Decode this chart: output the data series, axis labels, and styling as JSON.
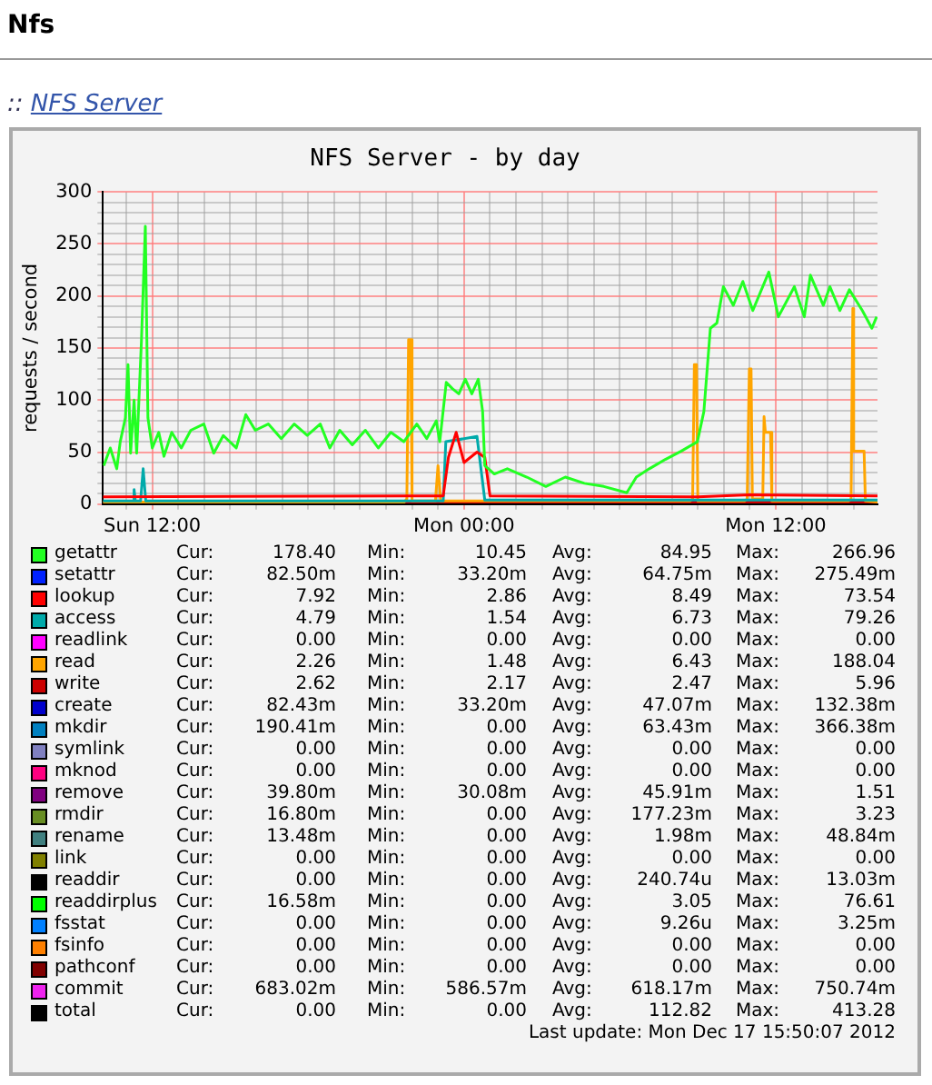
{
  "chart_data": {
    "type": "line",
    "title": "NFS Server - by day",
    "ylabel": "requests / second",
    "xlim": [
      "2012-12-16T10:06",
      "2012-12-17T15:55"
    ],
    "ylim": [
      0,
      300
    ],
    "xticks": [
      {
        "value": "2012-12-16T11:00",
        "label": null
      },
      {
        "value": "2012-12-16T12:00",
        "label": "Sun 12:00"
      },
      {
        "value": "2012-12-16T13:00",
        "label": null
      },
      {
        "value": "2012-12-16T14:00",
        "label": null
      },
      {
        "value": "2012-12-16T15:00",
        "label": null
      },
      {
        "value": "2012-12-16T16:00",
        "label": null
      },
      {
        "value": "2012-12-16T17:00",
        "label": null
      },
      {
        "value": "2012-12-16T18:00",
        "label": null
      },
      {
        "value": "2012-12-16T19:00",
        "label": null
      },
      {
        "value": "2012-12-16T20:00",
        "label": null
      },
      {
        "value": "2012-12-16T21:00",
        "label": null
      },
      {
        "value": "2012-12-16T22:00",
        "label": null
      },
      {
        "value": "2012-12-16T23:00",
        "label": null
      },
      {
        "value": "2012-12-17T00:00",
        "label": "Mon 00:00"
      },
      {
        "value": "2012-12-17T01:00",
        "label": null
      },
      {
        "value": "2012-12-17T02:00",
        "label": null
      },
      {
        "value": "2012-12-17T03:00",
        "label": null
      },
      {
        "value": "2012-12-17T04:00",
        "label": null
      },
      {
        "value": "2012-12-17T05:00",
        "label": null
      },
      {
        "value": "2012-12-17T06:00",
        "label": null
      },
      {
        "value": "2012-12-17T07:00",
        "label": null
      },
      {
        "value": "2012-12-17T08:00",
        "label": null
      },
      {
        "value": "2012-12-17T09:00",
        "label": null
      },
      {
        "value": "2012-12-17T10:00",
        "label": null
      },
      {
        "value": "2012-12-17T11:00",
        "label": null
      },
      {
        "value": "2012-12-17T12:00",
        "label": "Mon 12:00"
      },
      {
        "value": "2012-12-17T13:00",
        "label": null
      },
      {
        "value": "2012-12-17T14:00",
        "label": null
      },
      {
        "value": "2012-12-17T15:00",
        "label": null
      }
    ],
    "yticks": [
      0,
      {
        "value": 10,
        "label": null
      },
      {
        "value": 20,
        "label": null
      },
      {
        "value": 30,
        "label": null
      },
      {
        "value": 40,
        "label": null
      },
      50,
      {
        "value": 60,
        "label": null
      },
      {
        "value": 70,
        "label": null
      },
      {
        "value": 80,
        "label": null
      },
      {
        "value": 90,
        "label": null
      },
      100,
      {
        "value": 110,
        "label": null
      },
      {
        "value": 120,
        "label": null
      },
      {
        "value": 130,
        "label": null
      },
      {
        "value": 140,
        "label": null
      },
      150,
      {
        "value": 160,
        "label": null
      },
      {
        "value": 170,
        "label": null
      },
      {
        "value": 180,
        "label": null
      },
      {
        "value": 190,
        "label": null
      },
      200,
      {
        "value": 210,
        "label": null
      },
      {
        "value": 220,
        "label": null
      },
      {
        "value": 230,
        "label": null
      },
      {
        "value": 240,
        "label": null
      },
      250,
      {
        "value": 260,
        "label": null
      },
      {
        "value": 270,
        "label": null
      },
      {
        "value": 280,
        "label": null
      },
      {
        "value": 290,
        "label": null
      },
      300
    ],
    "grid": true,
    "legend": "bottom",
    "series": [
      {
        "name": "getattr",
        "color": "#22ff22",
        "x": [
          "2012-12-16T10:08",
          "2012-12-16T10:23",
          "2012-12-16T10:38",
          "2012-12-16T10:46",
          "2012-12-16T10:58",
          "2012-12-16T11:04",
          "2012-12-16T11:10",
          "2012-12-16T11:18",
          "2012-12-16T11:24",
          "2012-12-16T11:35",
          "2012-12-16T11:44",
          "2012-12-16T11:50",
          "2012-12-16T12:00",
          "2012-12-16T12:15",
          "2012-12-16T12:27",
          "2012-12-16T12:45",
          "2012-12-16T13:07",
          "2012-12-16T13:29",
          "2012-12-16T13:59",
          "2012-12-16T14:22",
          "2012-12-16T14:44",
          "2012-12-16T15:14",
          "2012-12-16T15:36",
          "2012-12-16T15:58",
          "2012-12-16T16:28",
          "2012-12-16T16:58",
          "2012-12-16T17:28",
          "2012-12-16T17:58",
          "2012-12-16T18:28",
          "2012-12-16T18:50",
          "2012-12-16T19:13",
          "2012-12-16T19:42",
          "2012-12-16T20:12",
          "2012-12-16T20:42",
          "2012-12-16T21:11",
          "2012-12-16T21:41",
          "2012-12-16T22:11",
          "2012-12-16T22:34",
          "2012-12-16T22:56",
          "2012-12-16T23:04",
          "2012-12-16T23:19",
          "2012-12-16T23:33",
          "2012-12-16T23:48",
          "2012-12-17T00:03",
          "2012-12-17T00:18",
          "2012-12-17T00:33",
          "2012-12-17T00:43",
          "2012-12-17T00:48",
          "2012-12-17T01:10",
          "2012-12-17T01:40",
          "2012-12-17T02:25",
          "2012-12-17T03:09",
          "2012-12-17T03:54",
          "2012-12-17T04:38",
          "2012-12-17T05:23",
          "2012-12-17T06:16",
          "2012-12-17T06:38",
          "2012-12-17T07:08",
          "2012-12-17T07:45",
          "2012-12-17T08:22",
          "2012-12-17T08:59",
          "2012-12-17T09:14",
          "2012-12-17T09:29",
          "2012-12-17T09:44",
          "2012-12-17T09:59",
          "2012-12-17T10:22",
          "2012-12-17T10:44",
          "2012-12-17T11:07",
          "2012-12-17T11:44",
          "2012-12-17T12:06",
          "2012-12-17T12:43",
          "2012-12-17T13:06",
          "2012-12-17T13:20",
          "2012-12-17T13:50",
          "2012-12-17T14:05",
          "2012-12-17T14:28",
          "2012-12-17T14:50",
          "2012-12-17T15:20",
          "2012-12-17T15:42",
          "2012-12-17T15:53"
        ],
        "values": [
          37,
          54,
          34,
          60,
          83,
          134,
          49,
          100,
          49,
          157,
          267,
          83,
          54,
          69,
          46,
          69,
          54,
          71,
          77,
          49,
          66,
          54,
          86,
          71,
          77,
          63,
          77,
          66,
          77,
          54,
          71,
          57,
          71,
          54,
          69,
          60,
          77,
          63,
          80,
          60,
          117,
          111,
          106,
          120,
          106,
          120,
          89,
          37,
          29,
          34,
          26,
          17,
          26,
          20,
          17,
          11,
          26,
          34,
          43,
          51,
          60,
          89,
          169,
          174,
          209,
          191,
          214,
          186,
          223,
          180,
          209,
          180,
          220,
          191,
          209,
          186,
          206,
          186,
          169,
          180
        ]
      },
      {
        "name": "setattr",
        "color": "#0022ff",
        "values": [
          null
        ]
      },
      {
        "name": "lookup",
        "color": "#ff0000",
        "x": [
          "2012-12-16T10:06",
          "2012-12-16T21:48",
          "2012-12-16T23:12",
          "2012-12-16T23:24",
          "2012-12-16T23:42",
          "2012-12-17T00:00",
          "2012-12-17T00:30",
          "2012-12-17T00:48",
          "2012-12-17T01:00",
          "2012-12-17T09:00",
          "2012-12-17T11:00",
          "2012-12-17T15:55"
        ],
        "values": [
          7,
          8,
          8,
          45,
          69,
          40,
          50,
          45,
          8,
          7,
          9,
          8
        ]
      },
      {
        "name": "access",
        "color": "#00aaaa",
        "x": [
          "2012-12-16T10:06",
          "2012-12-16T11:15",
          "2012-12-16T11:18",
          "2012-12-16T11:21",
          "2012-12-16T11:33",
          "2012-12-16T11:39",
          "2012-12-16T11:45",
          "2012-12-16T23:12",
          "2012-12-16T23:18",
          "2012-12-17T00:30",
          "2012-12-17T00:48",
          "2012-12-17T15:55"
        ],
        "values": [
          3,
          3,
          14,
          3,
          3,
          34,
          3,
          3,
          60,
          65,
          4,
          4
        ]
      },
      {
        "name": "readlink",
        "color": "#ff00ff",
        "values": [
          null
        ]
      },
      {
        "name": "read",
        "color": "#ffa500",
        "x": [
          "2012-12-16T10:06",
          "2012-12-16T21:42",
          "2012-12-16T21:48",
          "2012-12-16T21:52",
          "2012-12-16T21:57",
          "2012-12-16T22:00",
          "2012-12-16T22:54",
          "2012-12-16T23:00",
          "2012-12-16T23:06",
          "2012-12-17T08:42",
          "2012-12-17T08:48",
          "2012-12-17T08:52",
          "2012-12-17T08:57",
          "2012-12-17T09:00",
          "2012-12-17T10:48",
          "2012-12-17T10:54",
          "2012-12-17T10:59",
          "2012-12-17T11:03",
          "2012-12-17T11:06",
          "2012-12-17T11:30",
          "2012-12-17T11:33",
          "2012-12-17T11:36",
          "2012-12-17T11:48",
          "2012-12-17T11:51",
          "2012-12-17T14:48",
          "2012-12-17T14:54",
          "2012-12-17T14:58",
          "2012-12-17T15:00",
          "2012-12-17T15:24",
          "2012-12-17T15:27",
          "2012-12-17T15:55"
        ],
        "values": [
          2,
          2,
          5,
          158,
          158,
          3,
          3,
          37,
          3,
          3,
          5,
          134,
          134,
          3,
          3,
          5,
          130,
          130,
          5,
          5,
          84,
          69,
          69,
          3,
          3,
          5,
          188,
          51,
          51,
          3,
          2
        ]
      },
      {
        "name": "write",
        "color": "#cc0000",
        "x": [
          "2012-12-16T10:06",
          "2012-12-17T15:55"
        ],
        "values": [
          2,
          2
        ]
      },
      {
        "name": "create",
        "color": "#0000cc",
        "values": [
          null
        ]
      },
      {
        "name": "mkdir",
        "color": "#0080c0",
        "values": [
          null
        ]
      },
      {
        "name": "symlink",
        "color": "#8080c0",
        "values": [
          null
        ]
      },
      {
        "name": "mknod",
        "color": "#ff0080",
        "values": [
          null
        ]
      },
      {
        "name": "remove",
        "color": "#800080",
        "values": [
          null
        ]
      },
      {
        "name": "rmdir",
        "color": "#688e23",
        "values": [
          null
        ]
      },
      {
        "name": "rename",
        "color": "#408080",
        "values": [
          null
        ]
      },
      {
        "name": "link",
        "color": "#808000",
        "values": [
          null
        ]
      },
      {
        "name": "readdir",
        "color": "#000000",
        "x": [
          "2012-12-16T10:06",
          "2012-12-17T15:55"
        ],
        "values": [
          0,
          0
        ]
      },
      {
        "name": "readdirplus",
        "color": "#00ff00",
        "values": [
          null
        ]
      },
      {
        "name": "fsstat",
        "color": "#0080ff",
        "values": [
          null
        ]
      },
      {
        "name": "fsinfo",
        "color": "#ff8000",
        "values": [
          null
        ]
      },
      {
        "name": "pathconf",
        "color": "#800000",
        "values": [
          null
        ]
      },
      {
        "name": "commit",
        "color": "#ee22ee",
        "values": [
          null
        ]
      },
      {
        "name": "total",
        "color": "#000000",
        "values": [
          null
        ]
      }
    ],
    "annotations": [
      "Nfs",
      ":: NFS Server",
      "Cur: 178.40",
      "Min: 10.45",
      "Avg: 84.95",
      "Max: 266.96",
      "Cur: 82.50m",
      "Min: 33.20m",
      "Avg: 64.75m",
      "Max: 275.49m",
      "Cur: 7.92",
      "Min: 2.86",
      "Avg: 8.49",
      "Max: 73.54",
      "Cur: 4.79",
      "Min: 1.54",
      "Avg: 6.73",
      "Max: 79.26",
      "Cur: 0.00",
      "Min: 0.00",
      "Avg: 0.00",
      "Max: 0.00",
      "Cur: 2.26",
      "Min: 1.48",
      "Avg: 6.43",
      "Max: 188.04",
      "Cur: 2.62",
      "Min: 2.17",
      "Avg: 2.47",
      "Max: 5.96",
      "Cur: 82.43m",
      "Min: 33.20m",
      "Avg: 47.07m",
      "Max: 132.38m",
      "Cur: 190.41m",
      "Min: 0.00",
      "Avg: 63.43m",
      "Max: 366.38m",
      "Cur: 0.00",
      "Min: 0.00",
      "Avg: 0.00",
      "Max: 0.00",
      "Cur: 0.00",
      "Min: 0.00",
      "Avg: 0.00",
      "Max: 0.00",
      "Cur: 39.80m",
      "Min: 30.08m",
      "Avg: 45.91m",
      "Max: 1.51",
      "Cur: 16.80m",
      "Min: 0.00",
      "Avg: 177.23m",
      "Max: 3.23",
      "Cur: 13.48m",
      "Min: 0.00",
      "Avg: 1.98m",
      "Max: 48.84m",
      "Cur: 0.00",
      "Min: 0.00",
      "Avg: 0.00",
      "Max: 0.00",
      "Cur: 0.00",
      "Min: 0.00",
      "Avg: 240.74u",
      "Max: 13.03m",
      "Cur: 16.58m",
      "Min: 0.00",
      "Avg: 3.05",
      "Max: 76.61",
      "Cur: 0.00",
      "Min: 0.00",
      "Avg: 9.26u",
      "Max: 3.25m",
      "Cur: 0.00",
      "Min: 0.00",
      "Avg: 0.00",
      "Max: 0.00",
      "Cur: 0.00",
      "Min: 0.00",
      "Avg: 0.00",
      "Max: 0.00",
      "Cur: 683.02m",
      "Min: 586.57m",
      "Avg: 618.17m",
      "Max: 750.74m",
      "Cur: 0.00",
      "Min: 0.00",
      "Avg: 112.82",
      "Max: 413.28",
      "Last update: Mon Dec 17 15:50:07 2012"
    ]
  }
}
